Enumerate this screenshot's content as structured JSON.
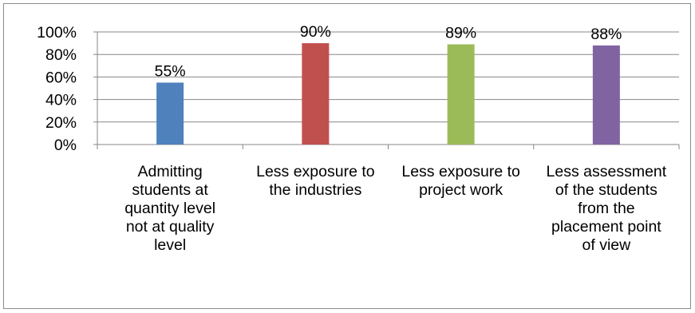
{
  "chart_data": {
    "type": "bar",
    "categories": [
      "Admitting\nstudents at\nquantity level\nnot at quality\nlevel",
      "Less exposure to\nthe industries",
      "Less exposure to\nproject work",
      "Less assessment\nof the students\nfrom the\nplacement point\nof view"
    ],
    "values": [
      55,
      90,
      89,
      88
    ],
    "data_labels": [
      "55%",
      "90%",
      "89%",
      "88%"
    ],
    "colors": [
      "#4f81bd",
      "#c0504d",
      "#9bbb59",
      "#8064a2"
    ],
    "ylim": [
      0,
      100
    ],
    "yticks": [
      0,
      20,
      40,
      60,
      80,
      100
    ],
    "ytick_labels": [
      "0%",
      "20%",
      "40%",
      "60%",
      "80%",
      "100%"
    ],
    "grid": true,
    "legend": "none",
    "title": "",
    "xlabel": "",
    "ylabel": ""
  }
}
